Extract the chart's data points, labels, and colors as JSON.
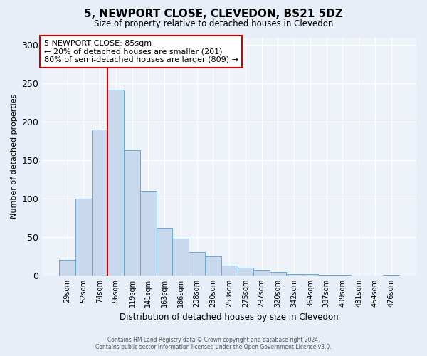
{
  "title": "5, NEWPORT CLOSE, CLEVEDON, BS21 5DZ",
  "subtitle": "Size of property relative to detached houses in Clevedon",
  "xlabel": "Distribution of detached houses by size in Clevedon",
  "ylabel": "Number of detached properties",
  "bar_labels": [
    "29sqm",
    "52sqm",
    "74sqm",
    "96sqm",
    "119sqm",
    "141sqm",
    "163sqm",
    "186sqm",
    "208sqm",
    "230sqm",
    "253sqm",
    "275sqm",
    "297sqm",
    "320sqm",
    "342sqm",
    "364sqm",
    "387sqm",
    "409sqm",
    "431sqm",
    "454sqm",
    "476sqm"
  ],
  "bar_values": [
    20,
    100,
    190,
    242,
    163,
    110,
    62,
    48,
    30,
    25,
    13,
    10,
    7,
    4,
    2,
    2,
    1,
    1,
    0,
    0,
    1
  ],
  "bar_color": "#c8d9ee",
  "bar_edge_color": "#6aaad4",
  "property_line_x": 2.5,
  "property_line_color": "#cc0000",
  "ylim": [
    0,
    310
  ],
  "yticks": [
    0,
    50,
    100,
    150,
    200,
    250,
    300
  ],
  "annotation_title": "5 NEWPORT CLOSE: 85sqm",
  "annotation_line1": "← 20% of detached houses are smaller (201)",
  "annotation_line2": "80% of semi-detached houses are larger (809) →",
  "annotation_box_color": "#ffffff",
  "annotation_box_edge": "#cc0000",
  "footer_line1": "Contains HM Land Registry data © Crown copyright and database right 2024.",
  "footer_line2": "Contains public sector information licensed under the Open Government Licence v3.0.",
  "background_color": "#e8eef7",
  "plot_bg_color": "#eef2f9"
}
